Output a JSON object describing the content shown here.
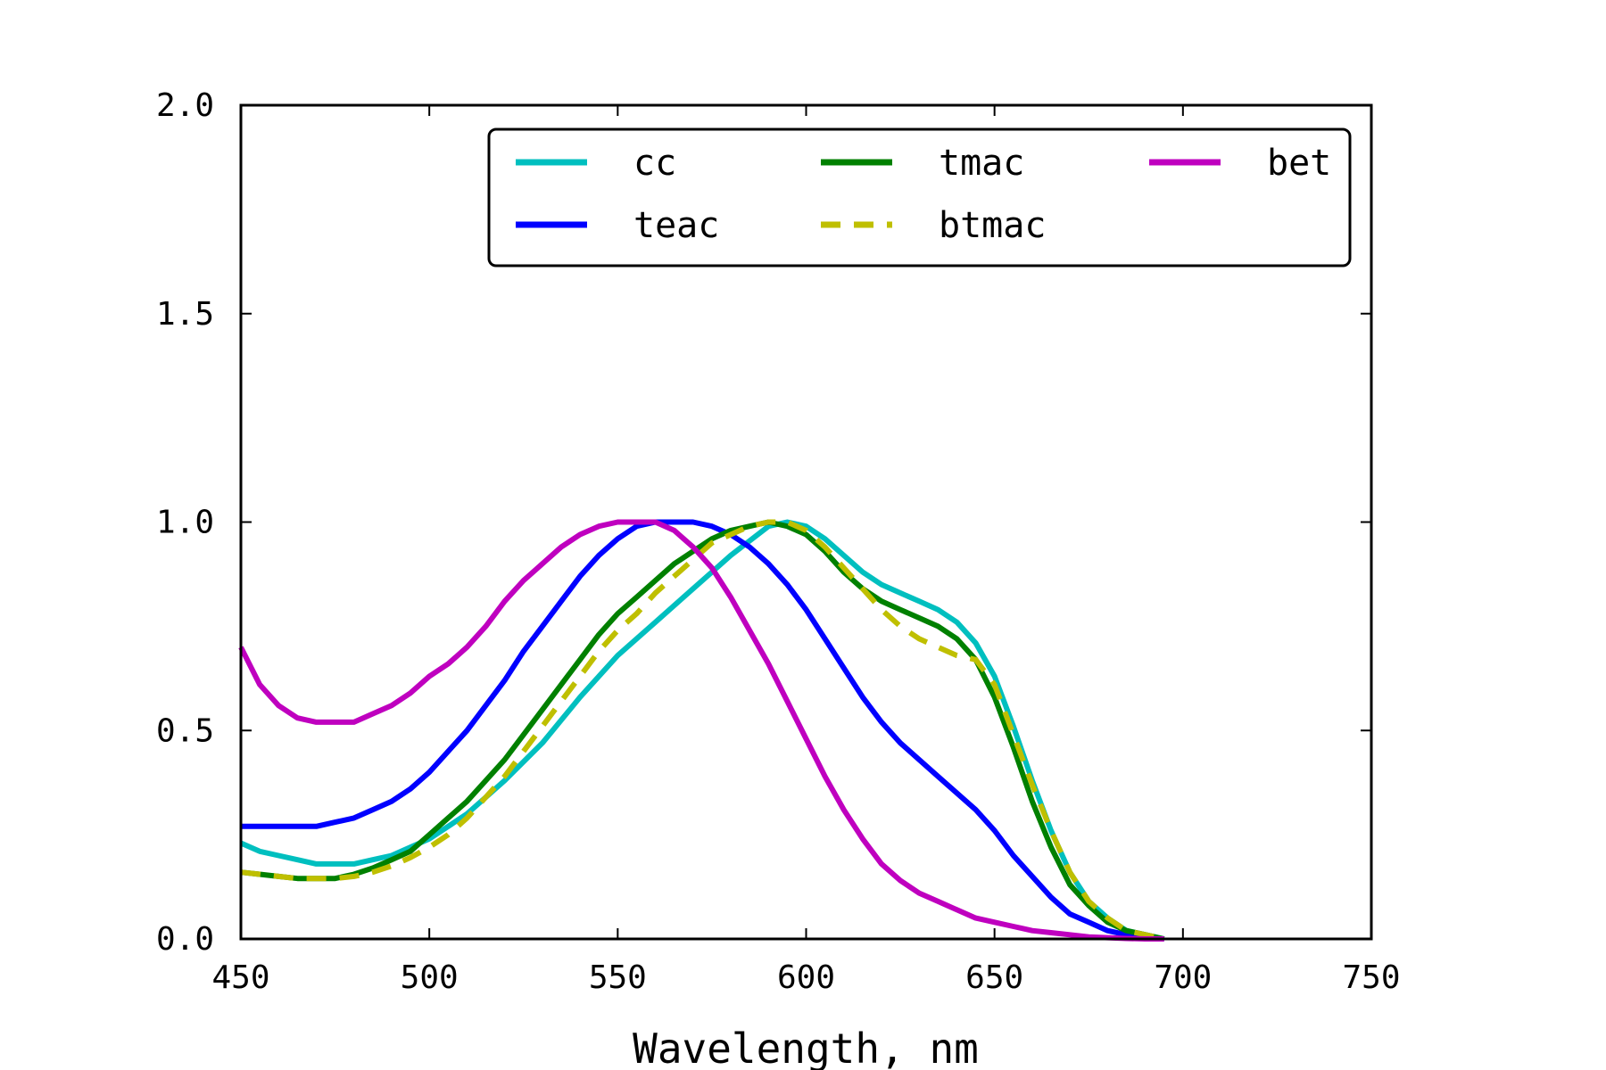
{
  "chart_data": {
    "type": "line",
    "xlabel": "Wavelength, nm",
    "ylabel": "",
    "xlim": [
      450,
      750
    ],
    "ylim": [
      0.0,
      2.0
    ],
    "xticks": [
      450,
      500,
      550,
      600,
      650,
      700,
      750
    ],
    "yticks": [
      0.0,
      0.5,
      1.0,
      1.5,
      2.0
    ],
    "xtick_labels": [
      "450",
      "500",
      "550",
      "600",
      "650",
      "700",
      "750"
    ],
    "ytick_labels": [
      "0.0",
      "0.5",
      "1.0",
      "1.5",
      "2.0"
    ],
    "grid": false,
    "legend_position": "top-right",
    "legend_columns": 3,
    "series": [
      {
        "name": "cc",
        "color": "#00bfbf",
        "dash": "solid",
        "x": [
          450,
          455,
          460,
          465,
          470,
          475,
          480,
          485,
          490,
          495,
          500,
          510,
          520,
          530,
          540,
          550,
          560,
          570,
          580,
          590,
          595,
          600,
          605,
          610,
          615,
          620,
          625,
          630,
          635,
          640,
          645,
          650,
          655,
          660,
          665,
          670,
          675,
          680,
          685,
          690,
          695
        ],
        "y": [
          0.23,
          0.21,
          0.2,
          0.19,
          0.18,
          0.18,
          0.18,
          0.19,
          0.2,
          0.22,
          0.24,
          0.3,
          0.38,
          0.47,
          0.58,
          0.68,
          0.76,
          0.84,
          0.92,
          0.99,
          1.0,
          0.99,
          0.96,
          0.92,
          0.88,
          0.85,
          0.83,
          0.81,
          0.79,
          0.76,
          0.71,
          0.63,
          0.51,
          0.38,
          0.26,
          0.16,
          0.09,
          0.05,
          0.02,
          0.01,
          0.0
        ]
      },
      {
        "name": "teac",
        "color": "#0000ff",
        "dash": "solid",
        "x": [
          450,
          455,
          460,
          465,
          470,
          475,
          480,
          485,
          490,
          495,
          500,
          505,
          510,
          515,
          520,
          525,
          530,
          535,
          540,
          545,
          550,
          555,
          560,
          565,
          570,
          575,
          580,
          585,
          590,
          595,
          600,
          605,
          610,
          615,
          620,
          625,
          630,
          635,
          640,
          645,
          650,
          655,
          660,
          665,
          670,
          675,
          680,
          685,
          690,
          695
        ],
        "y": [
          0.27,
          0.27,
          0.27,
          0.27,
          0.27,
          0.28,
          0.29,
          0.31,
          0.33,
          0.36,
          0.4,
          0.45,
          0.5,
          0.56,
          0.62,
          0.69,
          0.75,
          0.81,
          0.87,
          0.92,
          0.96,
          0.99,
          1.0,
          1.0,
          1.0,
          0.99,
          0.97,
          0.94,
          0.9,
          0.85,
          0.79,
          0.72,
          0.65,
          0.58,
          0.52,
          0.47,
          0.43,
          0.39,
          0.35,
          0.31,
          0.26,
          0.2,
          0.15,
          0.1,
          0.06,
          0.04,
          0.02,
          0.01,
          0.0,
          0.0
        ]
      },
      {
        "name": "tmac",
        "color": "#008000",
        "dash": "solid",
        "x": [
          450,
          455,
          460,
          465,
          470,
          475,
          480,
          485,
          490,
          495,
          500,
          505,
          510,
          515,
          520,
          525,
          530,
          535,
          540,
          545,
          550,
          555,
          560,
          565,
          570,
          575,
          580,
          585,
          590,
          595,
          600,
          605,
          610,
          615,
          620,
          625,
          630,
          635,
          640,
          645,
          650,
          655,
          660,
          665,
          670,
          675,
          680,
          685,
          690,
          695
        ],
        "y": [
          0.16,
          0.155,
          0.15,
          0.145,
          0.145,
          0.145,
          0.155,
          0.17,
          0.19,
          0.21,
          0.25,
          0.29,
          0.33,
          0.38,
          0.43,
          0.49,
          0.55,
          0.61,
          0.67,
          0.73,
          0.78,
          0.82,
          0.86,
          0.9,
          0.93,
          0.96,
          0.98,
          0.99,
          1.0,
          0.99,
          0.97,
          0.93,
          0.88,
          0.84,
          0.81,
          0.79,
          0.77,
          0.75,
          0.72,
          0.67,
          0.58,
          0.46,
          0.33,
          0.22,
          0.13,
          0.08,
          0.04,
          0.02,
          0.01,
          0.0
        ]
      },
      {
        "name": "btmac",
        "color": "#bfbf00",
        "dash": "dashed",
        "x": [
          450,
          455,
          460,
          465,
          470,
          475,
          480,
          485,
          490,
          495,
          500,
          505,
          510,
          515,
          520,
          525,
          530,
          535,
          540,
          545,
          550,
          555,
          560,
          565,
          570,
          575,
          580,
          585,
          590,
          595,
          600,
          605,
          610,
          615,
          620,
          625,
          630,
          635,
          640,
          645,
          650,
          655,
          660,
          665,
          670,
          675,
          680,
          685,
          690,
          695
        ],
        "y": [
          0.16,
          0.155,
          0.15,
          0.145,
          0.145,
          0.145,
          0.15,
          0.16,
          0.175,
          0.195,
          0.22,
          0.25,
          0.29,
          0.34,
          0.39,
          0.45,
          0.51,
          0.57,
          0.63,
          0.69,
          0.74,
          0.78,
          0.83,
          0.87,
          0.91,
          0.95,
          0.97,
          0.99,
          1.0,
          1.0,
          0.98,
          0.94,
          0.89,
          0.84,
          0.79,
          0.75,
          0.72,
          0.7,
          0.68,
          0.67,
          0.61,
          0.49,
          0.37,
          0.26,
          0.16,
          0.09,
          0.05,
          0.02,
          0.01,
          0.0
        ]
      },
      {
        "name": "bet",
        "color": "#bf00bf",
        "dash": "solid",
        "x": [
          450,
          455,
          460,
          465,
          470,
          475,
          480,
          485,
          490,
          495,
          500,
          505,
          510,
          515,
          520,
          525,
          530,
          535,
          540,
          545,
          550,
          555,
          560,
          565,
          570,
          575,
          580,
          585,
          590,
          595,
          600,
          605,
          610,
          615,
          620,
          625,
          630,
          635,
          640,
          645,
          650,
          655,
          660,
          665,
          670,
          675,
          680,
          685,
          690,
          695
        ],
        "y": [
          0.7,
          0.61,
          0.56,
          0.53,
          0.52,
          0.52,
          0.52,
          0.54,
          0.56,
          0.59,
          0.63,
          0.66,
          0.7,
          0.75,
          0.81,
          0.86,
          0.9,
          0.94,
          0.97,
          0.99,
          1.0,
          1.0,
          1.0,
          0.98,
          0.94,
          0.89,
          0.82,
          0.74,
          0.66,
          0.57,
          0.48,
          0.39,
          0.31,
          0.24,
          0.18,
          0.14,
          0.11,
          0.09,
          0.07,
          0.05,
          0.04,
          0.03,
          0.02,
          0.015,
          0.01,
          0.005,
          0.003,
          0.001,
          0.0,
          0.0
        ]
      }
    ]
  }
}
